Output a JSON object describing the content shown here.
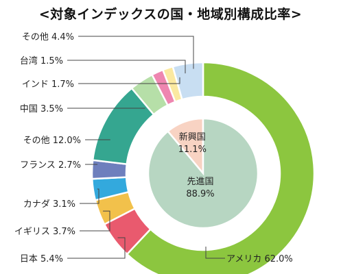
{
  "chart_data": {
    "type": "pie",
    "title": "<対象インデックスの国・地域別構成比率>",
    "inner": [
      {
        "label": "新興国",
        "value": 11.1,
        "value_label": "11.1%",
        "color": "#f8d3c3"
      },
      {
        "label": "先進国",
        "value": 88.9,
        "value_label": "88.9%",
        "color": "#b7d6c2"
      }
    ],
    "outer": [
      {
        "label": "アメリカ",
        "value": 62.0,
        "value_label": "62.0%",
        "color": "#8cc63f"
      },
      {
        "label": "日本",
        "value": 5.4,
        "value_label": "5.4%",
        "color": "#e95a6e"
      },
      {
        "label": "イギリス",
        "value": 3.7,
        "value_label": "3.7%",
        "color": "#f2c14b"
      },
      {
        "label": "カナダ",
        "value": 3.1,
        "value_label": "3.1%",
        "color": "#33a9dd"
      },
      {
        "label": "フランス",
        "value": 2.7,
        "value_label": "2.7%",
        "color": "#6e7fbd"
      },
      {
        "label": "その他",
        "value": 12.0,
        "value_label": "12.0%",
        "color": "#35a690"
      },
      {
        "label": "中国",
        "value": 3.5,
        "value_label": "3.5%",
        "color": "#b6dfa8"
      },
      {
        "label": "インド",
        "value": 1.7,
        "value_label": "1.7%",
        "color": "#ee86b0"
      },
      {
        "label": "台湾",
        "value": 1.5,
        "value_label": "1.5%",
        "color": "#fbe9a0"
      },
      {
        "label": "その他",
        "value": 4.4,
        "value_label": "4.4%",
        "color": "#c8def2"
      }
    ]
  }
}
